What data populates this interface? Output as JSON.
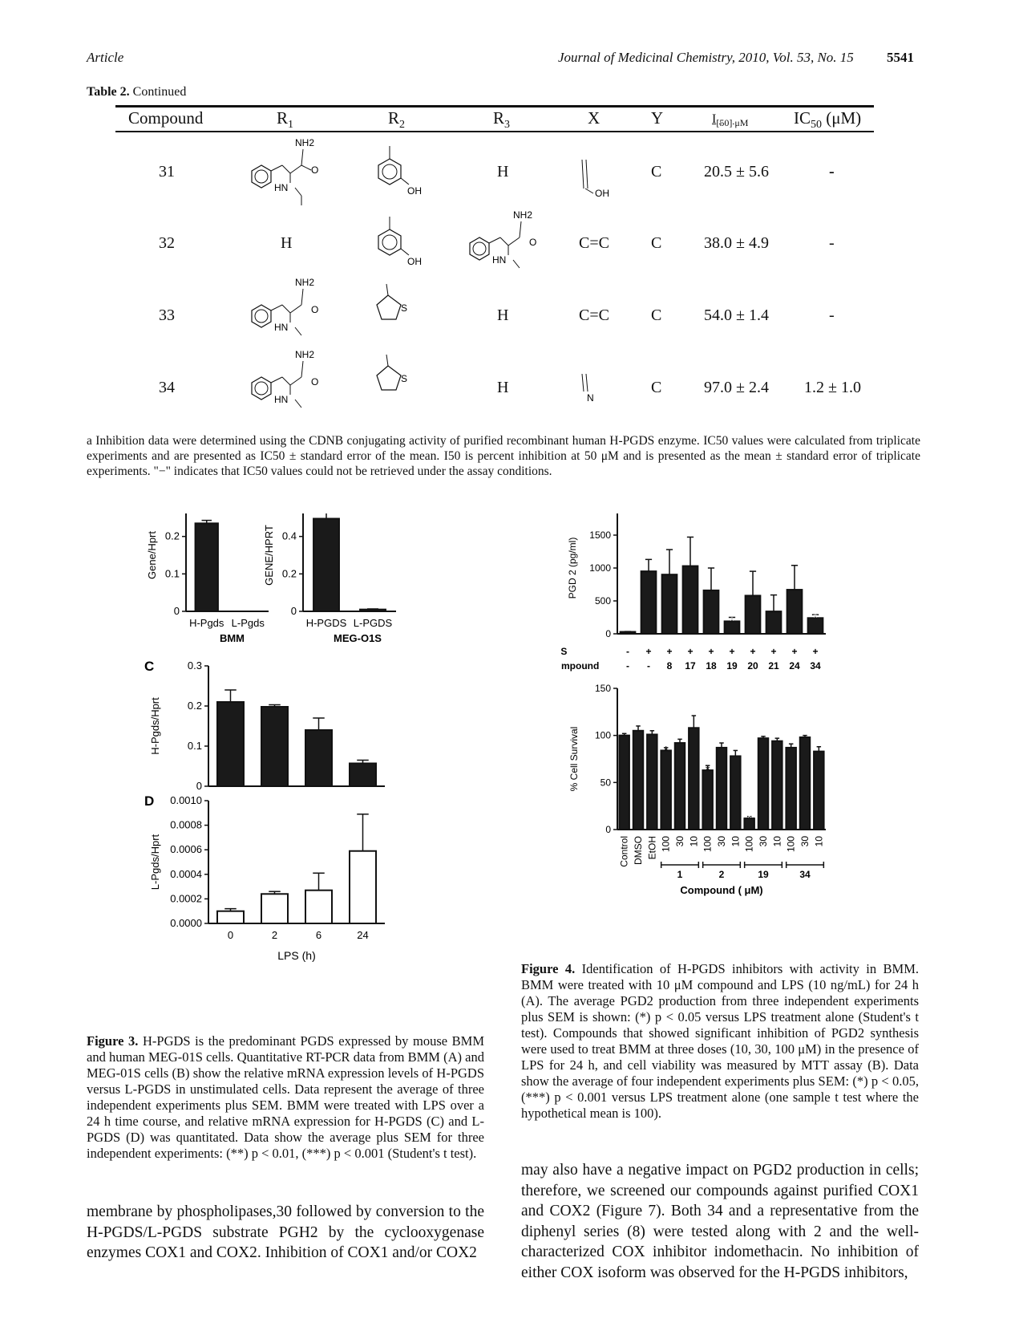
{
  "header": {
    "left": "Article",
    "journal": "Journal of Medicinal Chemistry, 2010, Vol. 53, No. 15",
    "page": "5541"
  },
  "table": {
    "caption_label": "Table 2.",
    "caption_text": "Continued",
    "columns": [
      "Compound",
      "R1",
      "R2",
      "R3",
      "X",
      "Y",
      "I[50] μM",
      "IC50 (μM)"
    ],
    "rows": [
      {
        "compound": "31",
        "r1": "",
        "r2": "",
        "r3": "H",
        "x": "",
        "y": "C",
        "i50": "20.5 ± 5.6",
        "ic50": "-"
      },
      {
        "compound": "32",
        "r1": "H",
        "r2": "",
        "r3": "",
        "x": "C=C",
        "y": "C",
        "i50": "38.0 ± 4.9",
        "ic50": "-"
      },
      {
        "compound": "33",
        "r1": "",
        "r2": "",
        "r3": "H",
        "x": "C=C",
        "y": "C",
        "i50": "54.0 ± 1.4",
        "ic50": "-"
      },
      {
        "compound": "34",
        "r1": "",
        "r2": "",
        "r3": "H",
        "x": "",
        "y": "C",
        "i50": "97.0 ± 2.4",
        "ic50": "1.2 ± 1.0"
      }
    ],
    "struct_labels": {
      "nh2": "NH2",
      "hn": "HN",
      "o": "O",
      "oh": "OH",
      "s": "S",
      "n": "N"
    },
    "footnote": "a Inhibition data were determined using the CDNB conjugating activity of purified recombinant human H-PGDS enzyme. IC50 values were calculated from triplicate experiments and are presented as IC50 ± standard error of the mean. I50 is percent inhibition at 50 μM and is presented as the mean ± standard error of triplicate experiments. \"−\" indicates that IC50 values could not be retrieved under the assay conditions."
  },
  "chart_data": [
    {
      "panel": "Figure 3A",
      "type": "bar",
      "categories": [
        "H-Pgds",
        "L-Pgds"
      ],
      "values": [
        0.235,
        0.0
      ],
      "errors": [
        0.008,
        0.0
      ],
      "ylabel": "Gene/Hprt",
      "xlabel": "BMM",
      "ylim": [
        0,
        0.3
      ],
      "yticks": [
        "0",
        "0.1",
        "0.2",
        "0.3"
      ],
      "annotation": "***"
    },
    {
      "panel": "Figure 3B",
      "type": "bar",
      "categories": [
        "H-PGDS",
        "L-PGDS"
      ],
      "values": [
        0.495,
        0.01
      ],
      "errors": [
        0.055,
        0.003
      ],
      "ylabel": "GENE/HPRT",
      "xlabel": "MEG-O1S",
      "ylim": [
        0,
        0.6
      ],
      "yticks": [
        "0",
        "0.2",
        "0.4",
        "0.6"
      ],
      "annotation": "**"
    },
    {
      "panel": "Figure 3C",
      "type": "bar",
      "categories": [
        "0",
        "2",
        "6",
        "24"
      ],
      "values": [
        0.21,
        0.198,
        0.14,
        0.057
      ],
      "errors": [
        0.03,
        0.005,
        0.03,
        0.008
      ],
      "ylabel": "H-Pgds/Hprt",
      "ylim": [
        0,
        0.3
      ],
      "yticks": [
        "0",
        "0.1",
        "0.2",
        "0.3"
      ]
    },
    {
      "panel": "Figure 3D",
      "type": "bar",
      "categories": [
        "0",
        "2",
        "6",
        "24"
      ],
      "values": [
        0.0001,
        0.00024,
        0.00027,
        0.00059
      ],
      "errors": [
        2e-05,
        2e-05,
        0.00014,
        0.0003
      ],
      "ylabel": "L-Pgds/Hprt",
      "xlabel": "LPS (h)",
      "ylim": [
        0,
        0.001
      ],
      "yticks": [
        "0.0000",
        "0.0002",
        "0.0004",
        "0.0006",
        "0.0008",
        "0.0010"
      ]
    },
    {
      "panel": "Figure 4A",
      "type": "bar",
      "lps": [
        "-",
        "+",
        "+",
        "+",
        "+",
        "+",
        "+",
        "+",
        "+",
        "+"
      ],
      "compound": [
        "-",
        "-",
        "8",
        "17",
        "18",
        "19",
        "20",
        "21",
        "24",
        "34"
      ],
      "values": [
        30,
        950,
        900,
        1030,
        660,
        190,
        580,
        340,
        670,
        240
      ],
      "errors": [
        5,
        180,
        380,
        440,
        340,
        60,
        370,
        250,
        370,
        50
      ],
      "stars": [
        "",
        "",
        "",
        "",
        "",
        "*",
        "",
        "",
        "",
        "*"
      ],
      "ylabel": "PGD 2 (pg/ml)",
      "row_labels": [
        "LPS",
        "Compound"
      ],
      "ylim": [
        0,
        2000
      ],
      "yticks": [
        "0",
        "500",
        "1000",
        "1500",
        "2000"
      ]
    },
    {
      "panel": "Figure 4B",
      "type": "bar",
      "categories": [
        "Control",
        "DMSO",
        "EtOH",
        "100",
        "30",
        "10",
        "100",
        "30",
        "10",
        "100",
        "30",
        "10",
        "100",
        "30",
        "10"
      ],
      "values": [
        100,
        105,
        101,
        84,
        92,
        108,
        63,
        87,
        78,
        12,
        97,
        94,
        87,
        98,
        83
      ],
      "errors": [
        2,
        5,
        4,
        3,
        4,
        13,
        5,
        5,
        6,
        2,
        2,
        3,
        4,
        2,
        5
      ],
      "stars": [
        "",
        "",
        "",
        "*",
        "",
        "",
        "*",
        "",
        "",
        "***",
        "",
        "",
        "",
        "",
        ""
      ],
      "groups": [
        "1",
        "2",
        "19",
        "34"
      ],
      "ylabel": "% Cell Survival",
      "xlabel": "Compound ( μM)",
      "ylim": [
        0,
        150
      ],
      "yticks": [
        "0",
        "50",
        "100",
        "150"
      ]
    }
  ],
  "figure3": {
    "caption_label": "Figure 3.",
    "caption_text": "H-PGDS is the predominant PGDS expressed by mouse BMM and human MEG-01S cells. Quantitative RT-PCR data from BMM (A) and MEG-01S cells (B) show the relative mRNA expression levels of H-PGDS versus L-PGDS in unstimulated cells. Data represent the average of three independent experiments plus SEM. BMM were treated with LPS over a 24 h time course, and relative mRNA expression for H-PGDS (C) and L-PGDS (D) was quantitated. Data show the average plus SEM for three independent experiments: (**) p < 0.01, (***) p < 0.001 (Student's t test)."
  },
  "figure4": {
    "caption_label": "Figure 4.",
    "caption_text": "Identification of H-PGDS inhibitors with activity in BMM. BMM were treated with 10 μM compound and LPS (10 ng/mL) for 24 h (A). The average PGD2 production from three independent experiments plus SEM is shown: (*) p < 0.05 versus LPS treatment alone (Student's t test). Compounds that showed significant inhibition of PGD2 synthesis were used to treat BMM at three doses (10, 30, 100 μM) in the presence of LPS for 24 h, and cell viability was measured by MTT assay (B). Data show the average of four independent experiments plus SEM: (*) p < 0.05, (***) p < 0.001 versus LPS treatment alone (one sample t test where the hypothetical mean is 100)."
  },
  "body": {
    "left": "membrane by phospholipases,30 followed by conversion to the H-PGDS/L-PGDS substrate PGH2 by the cyclooxygenase enzymes COX1 and COX2. Inhibition of COX1 and/or COX2",
    "right": "may also have a negative impact on PGD2 production in cells; therefore, we screened our compounds against purified COX1 and COX2 (Figure 7). Both 34 and a representative from the diphenyl series (8) were tested along with 2 and the well-characterized COX inhibitor indomethacin. No inhibition of either COX isoform was observed for the H-PGDS inhibitors,"
  }
}
